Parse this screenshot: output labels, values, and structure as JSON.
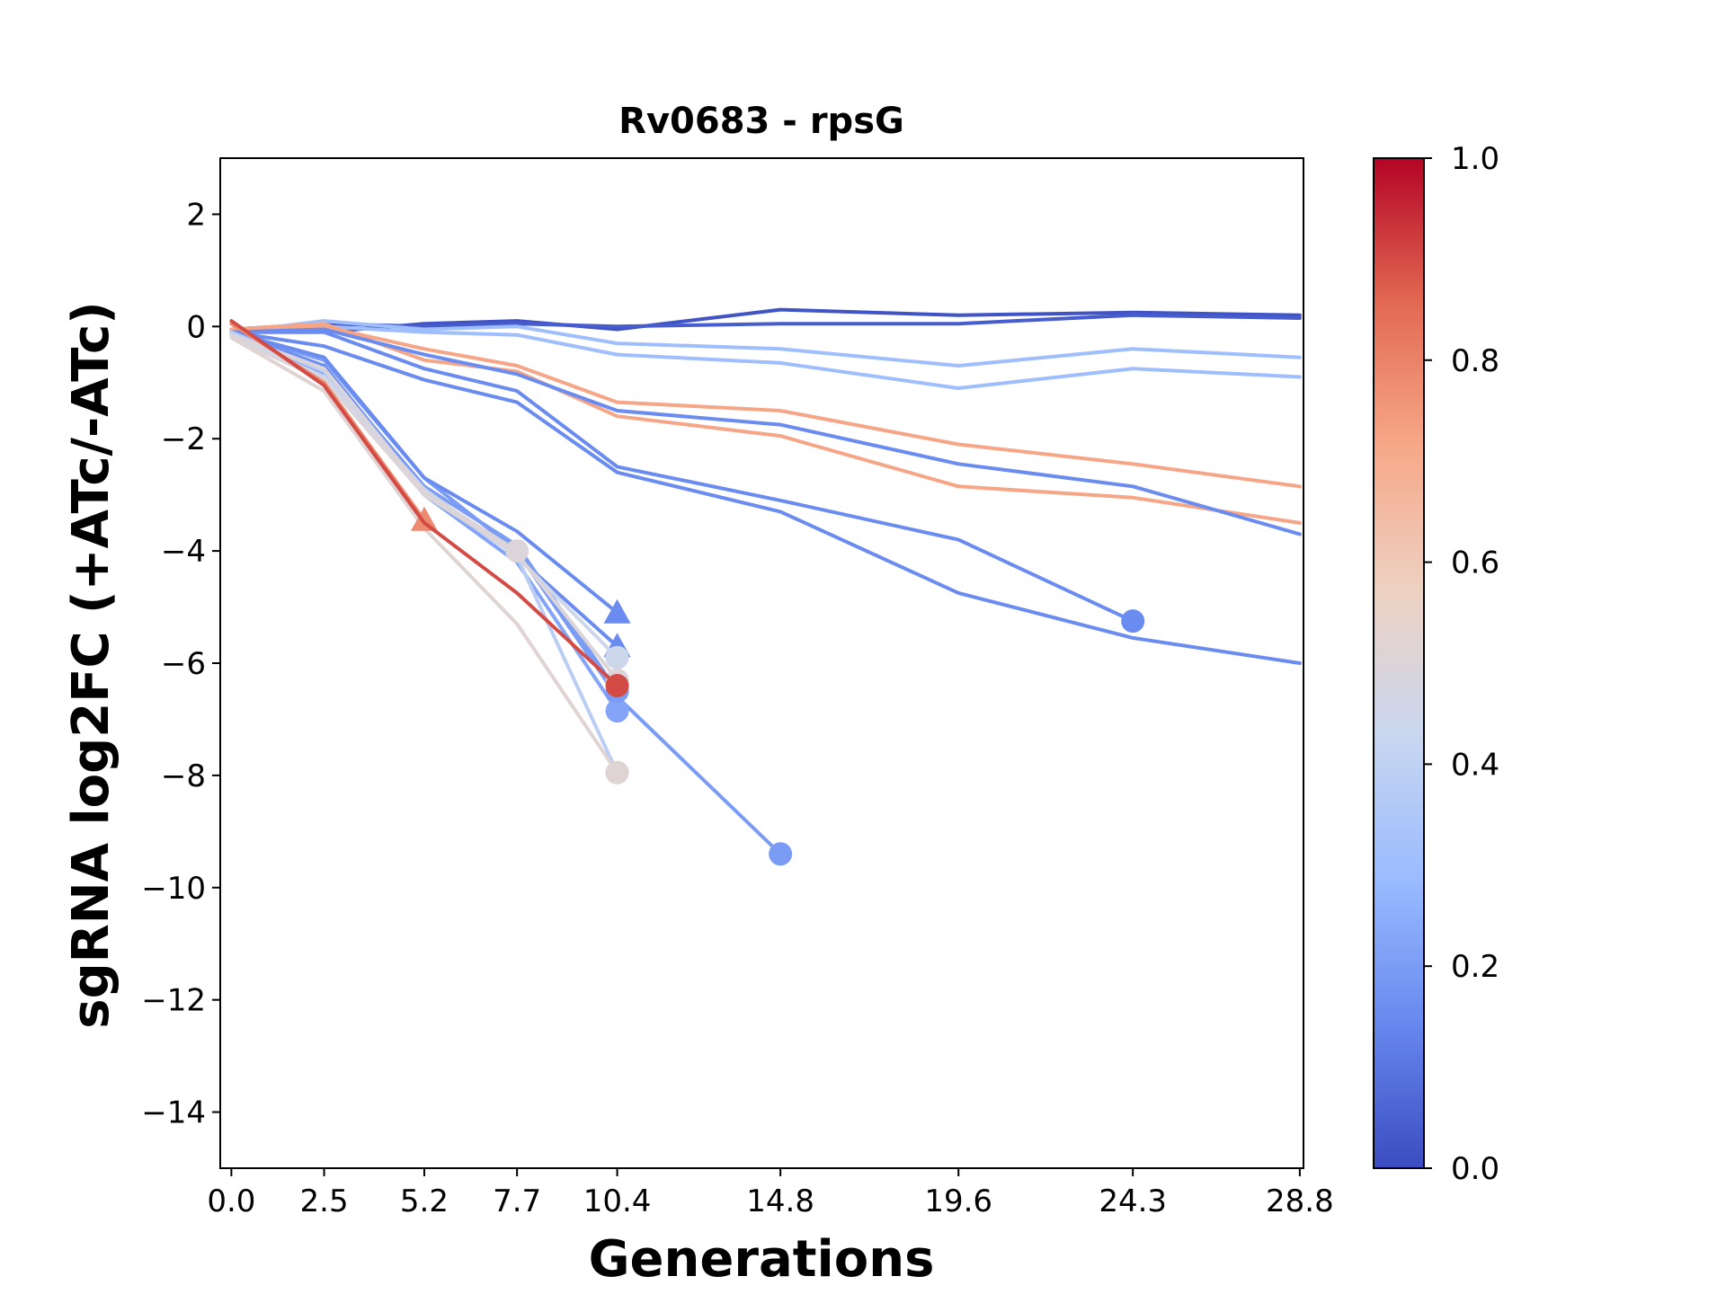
{
  "chart_data": {
    "type": "line",
    "title": "Rv0683 - rpsG",
    "xlabel": "Generations",
    "ylabel": "sgRNA log2FC (+ATc/-ATc)",
    "xlim": [
      -0.3,
      28.9
    ],
    "ylim": [
      -15,
      3
    ],
    "x_ticks": [
      0.0,
      2.5,
      5.2,
      7.7,
      10.4,
      14.8,
      19.6,
      24.3,
      28.8
    ],
    "x_tick_labels": [
      "0.0",
      "2.5",
      "5.2",
      "7.7",
      "10.4",
      "14.8",
      "19.6",
      "24.3",
      "28.8"
    ],
    "y_ticks": [
      2,
      0,
      -2,
      -4,
      -6,
      -8,
      -10,
      -12,
      -14
    ],
    "y_tick_labels": [
      "2",
      "0",
      "−2",
      "−4",
      "−6",
      "−8",
      "−10",
      "−12",
      "−14"
    ],
    "colorbar": {
      "min": 0.0,
      "max": 1.0,
      "ticks": [
        0.0,
        0.2,
        0.4,
        0.6,
        0.8,
        1.0
      ],
      "tick_labels": [
        "0.0",
        "0.2",
        "0.4",
        "0.6",
        "0.8",
        "1.0"
      ],
      "colormap": "coolwarm",
      "stops": [
        "#3b4cc0",
        "#6788ee",
        "#9abbff",
        "#c9d7f0",
        "#edd1c2",
        "#f7a889",
        "#e26952",
        "#b40426"
      ]
    },
    "series": [
      {
        "color_value": 0.02,
        "x": [
          0.0,
          2.5,
          5.2,
          7.7,
          10.4,
          14.8,
          19.6,
          24.3,
          28.8
        ],
        "y": [
          -0.1,
          -0.1,
          0.05,
          0.1,
          -0.05,
          0.3,
          0.2,
          0.25,
          0.2
        ],
        "marker": "none"
      },
      {
        "color_value": 0.04,
        "x": [
          0.0,
          2.5,
          5.2,
          7.7,
          10.4,
          14.8,
          19.6,
          24.3,
          28.8
        ],
        "y": [
          -0.05,
          0.05,
          0.0,
          0.05,
          0.0,
          0.05,
          0.05,
          0.2,
          0.15
        ],
        "marker": "none"
      },
      {
        "color_value": 0.3,
        "x": [
          0.0,
          2.5,
          5.2,
          7.7,
          10.4,
          14.8,
          19.6,
          24.3,
          28.8
        ],
        "y": [
          -0.1,
          0.1,
          -0.05,
          0.0,
          -0.3,
          -0.4,
          -0.7,
          -0.4,
          -0.55
        ],
        "marker": "none"
      },
      {
        "color_value": 0.3,
        "x": [
          0.0,
          2.5,
          5.2,
          7.7,
          10.4,
          14.8,
          19.6,
          24.3,
          28.8
        ],
        "y": [
          -0.05,
          0.0,
          -0.1,
          -0.15,
          -0.5,
          -0.65,
          -1.1,
          -0.75,
          -0.9
        ],
        "marker": "none"
      },
      {
        "color_value": 0.72,
        "x": [
          0.0,
          2.5,
          5.2,
          7.7,
          10.4,
          14.8,
          19.6,
          24.3,
          28.8
        ],
        "y": [
          -0.05,
          0.0,
          -0.4,
          -0.7,
          -1.35,
          -1.5,
          -2.1,
          -2.45,
          -2.85
        ],
        "marker": "none"
      },
      {
        "color_value": 0.72,
        "x": [
          0.0,
          2.5,
          5.2,
          7.7,
          10.4,
          14.8,
          19.6,
          24.3,
          28.8
        ],
        "y": [
          -0.05,
          0.05,
          -0.6,
          -0.8,
          -1.6,
          -1.95,
          -2.85,
          -3.05,
          -3.5
        ],
        "marker": "none"
      },
      {
        "color_value": 0.15,
        "x": [
          0.0,
          2.5,
          5.2,
          7.7,
          10.4,
          14.8,
          19.6,
          24.3,
          28.8
        ],
        "y": [
          -0.1,
          -0.05,
          -0.5,
          -0.85,
          -1.5,
          -1.75,
          -2.45,
          -2.85,
          -3.7
        ],
        "marker": "none"
      },
      {
        "color_value": 0.15,
        "x": [
          0.0,
          2.5,
          5.2,
          7.7,
          10.4,
          14.8,
          19.6,
          24.3
        ],
        "y": [
          -0.1,
          -0.1,
          -0.75,
          -1.15,
          -2.5,
          -3.1,
          -3.8,
          -5.25
        ],
        "marker": "circle"
      },
      {
        "color_value": 0.15,
        "x": [
          0.0,
          2.5,
          5.2,
          7.7,
          10.4,
          14.8,
          19.6,
          24.3,
          28.8
        ],
        "y": [
          -0.1,
          -0.35,
          -0.95,
          -1.35,
          -2.6,
          -3.3,
          -4.75,
          -5.55,
          -6.0
        ],
        "marker": "none"
      },
      {
        "color_value": 0.2,
        "x": [
          0.0,
          2.5,
          5.2,
          7.7,
          10.4,
          14.8
        ],
        "y": [
          -0.1,
          -0.6,
          -2.7,
          -4.0,
          -6.6,
          -9.4
        ],
        "marker": "circle"
      },
      {
        "color_value": 0.15,
        "x": [
          0.0,
          2.5,
          5.2,
          7.7,
          10.4
        ],
        "y": [
          -0.1,
          -0.55,
          -2.7,
          -3.65,
          -5.1
        ],
        "marker": "triangle"
      },
      {
        "color_value": 0.15,
        "x": [
          0.0,
          2.5,
          5.2,
          7.7,
          10.4
        ],
        "y": [
          -0.1,
          -0.7,
          -2.9,
          -4.1,
          -5.7
        ],
        "marker": "triangle"
      },
      {
        "color_value": 0.22,
        "x": [
          0.0,
          2.5,
          5.2,
          7.7,
          10.4
        ],
        "y": [
          -0.15,
          -0.85,
          -3.0,
          -4.2,
          -6.85
        ],
        "marker": "circle"
      },
      {
        "color_value": 0.2,
        "x": [
          0.0,
          2.5,
          5.2,
          7.7,
          10.4
        ],
        "y": [
          -0.1,
          -0.75,
          -2.85,
          -3.9,
          -6.5
        ],
        "marker": "circle"
      },
      {
        "color_value": 0.38,
        "x": [
          0.0,
          2.5,
          5.2,
          7.7,
          10.4
        ],
        "y": [
          -0.1,
          -0.8,
          -2.95,
          -4.1,
          -7.95
        ],
        "marker": "circle"
      },
      {
        "color_value": 0.44,
        "x": [
          0.0,
          2.5,
          5.2,
          7.7,
          10.4
        ],
        "y": [
          -0.15,
          -0.9,
          -2.9,
          -4.1,
          -5.9
        ],
        "marker": "circle"
      },
      {
        "color_value": 0.5,
        "x": [
          0.0,
          2.5,
          5.2,
          7.7,
          10.4
        ],
        "y": [
          -0.2,
          -0.95,
          -3.0,
          -4.05,
          -6.3
        ],
        "marker": "circle"
      },
      {
        "color_value": 0.5,
        "x": [
          0.0,
          2.5,
          5.2,
          7.7
        ],
        "y": [
          -0.15,
          -0.75,
          -2.95,
          -4.0
        ],
        "marker": "circle"
      },
      {
        "color_value": 0.52,
        "x": [
          0.0,
          2.5,
          5.2,
          7.7,
          10.4
        ],
        "y": [
          -0.2,
          -1.15,
          -3.6,
          -5.3,
          -7.95
        ],
        "marker": "circle"
      },
      {
        "color_value": 0.78,
        "x": [
          0.0,
          2.5,
          5.2
        ],
        "y": [
          0.05,
          -1.0,
          -3.45
        ],
        "marker": "triangle"
      },
      {
        "color_value": 0.9,
        "x": [
          0.0,
          2.5,
          5.2,
          7.7,
          10.4
        ],
        "y": [
          0.1,
          -1.05,
          -3.5,
          -4.75,
          -6.4
        ],
        "marker": "circle"
      }
    ]
  }
}
